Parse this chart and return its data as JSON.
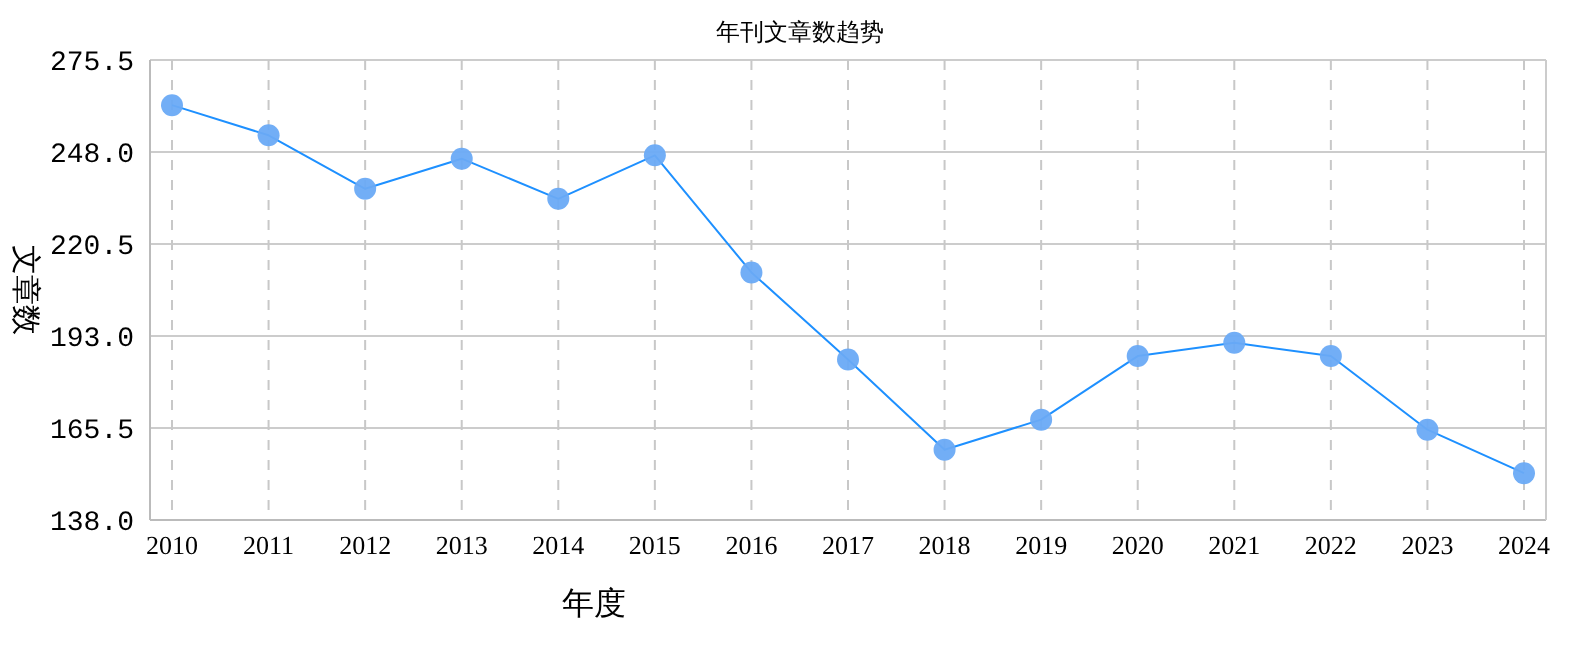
{
  "chart_data": {
    "type": "line",
    "title": "年刊文章数趋势",
    "xlabel": "年度",
    "ylabel": "文章数",
    "categories": [
      "2010",
      "2011",
      "2012",
      "2013",
      "2014",
      "2015",
      "2016",
      "2017",
      "2018",
      "2019",
      "2020",
      "2021",
      "2022",
      "2023",
      "2024"
    ],
    "series": [
      {
        "color": "#1e90ff",
        "values": [
          262,
          253,
          237,
          246,
          234,
          247,
          212,
          186,
          159,
          168,
          187,
          191,
          187,
          165,
          152
        ]
      }
    ],
    "ylim": [
      138,
      275.5
    ],
    "yticks": [
      {
        "value": 138,
        "label": "138.0"
      },
      {
        "value": 165.5,
        "label": "165.5"
      },
      {
        "value": 193,
        "label": "193.0"
      },
      {
        "value": 220.5,
        "label": "220.5"
      },
      {
        "value": 248,
        "label": "248.0"
      },
      {
        "value": 275.5,
        "label": "275.5"
      }
    ],
    "grid": true,
    "marker": "circle",
    "line_style": "solid"
  }
}
